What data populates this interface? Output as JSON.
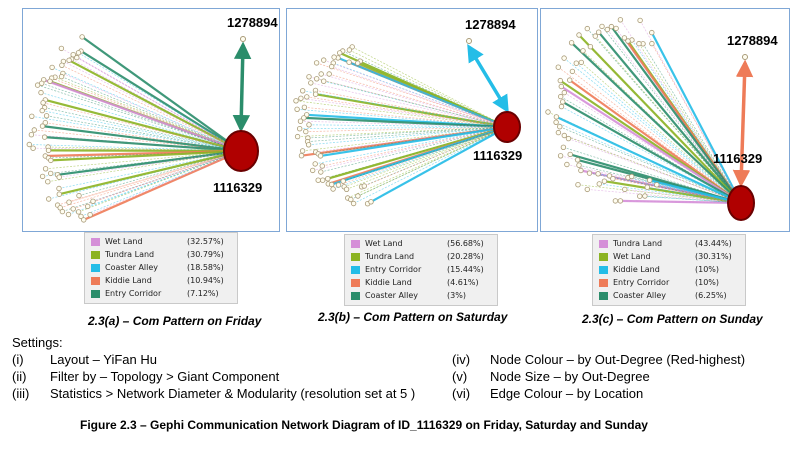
{
  "panels": [
    {
      "id": "friday",
      "top_label": "1278894",
      "hub_label": "1116329",
      "caption": "2.3(a) – Com Pattern on Friday",
      "legend": [
        {
          "name": "Wet Land",
          "pct": "(32.57%)",
          "color": "#d58fd8"
        },
        {
          "name": "Tundra Land",
          "pct": "(30.79%)",
          "color": "#8bb322"
        },
        {
          "name": "Coaster Alley",
          "pct": "(18.58%)",
          "color": "#24bde7"
        },
        {
          "name": "Kiddie Land",
          "pct": "(10.94%)",
          "color": "#ee7b58"
        },
        {
          "name": "Entry Corridor",
          "pct": "(7.12%)",
          "color": "#2b8d6b"
        }
      ],
      "top_edge_color": "#2b8d6b"
    },
    {
      "id": "saturday",
      "top_label": "1278894",
      "hub_label": "1116329",
      "caption": "2.3(b) – Com Pattern on Saturday",
      "legend": [
        {
          "name": "Wet Land",
          "pct": "(56.68%)",
          "color": "#d58fd8"
        },
        {
          "name": "Tundra Land",
          "pct": "(20.28%)",
          "color": "#8bb322"
        },
        {
          "name": "Entry Corridor",
          "pct": "(15.44%)",
          "color": "#24bde7"
        },
        {
          "name": "Kiddie Land",
          "pct": "(4.61%)",
          "color": "#ee7b58"
        },
        {
          "name": "Coaster Alley",
          "pct": "(3%)",
          "color": "#2b8d6b"
        }
      ],
      "top_edge_color": "#24bde7"
    },
    {
      "id": "sunday",
      "top_label": "1278894",
      "hub_label": "1116329",
      "caption": "2.3(c) – Com Pattern on Sunday",
      "legend": [
        {
          "name": "Tundra Land",
          "pct": "(43.44%)",
          "color": "#d58fd8"
        },
        {
          "name": "Wet Land",
          "pct": "(30.31%)",
          "color": "#8bb322"
        },
        {
          "name": "Kiddie Land",
          "pct": "(10%)",
          "color": "#24bde7"
        },
        {
          "name": "Entry Corridor",
          "pct": "(10%)",
          "color": "#ee7b58"
        },
        {
          "name": "Coaster Alley",
          "pct": "(6.25%)",
          "color": "#2b8d6b"
        }
      ],
      "top_edge_color": "#ee7b58"
    }
  ],
  "settings": {
    "title": "Settings:",
    "items": [
      {
        "num": "(i)",
        "text": "Layout – YiFan Hu"
      },
      {
        "num": "(ii)",
        "text": "Filter by – Topology > Giant Component"
      },
      {
        "num": "(iii)",
        "text": "Statistics > Network Diameter & Modularity (resolution set at 5 )"
      },
      {
        "num": "(iv)",
        "text": "Node Colour – by Out-Degree (Red-highest)"
      },
      {
        "num": "(v)",
        "text": "Node Size – by Out-Degree"
      },
      {
        "num": "(vi)",
        "text": "Edge Colour – by Location"
      }
    ]
  },
  "figure_caption": "Figure 2.3 – Gephi Communication Network Diagram of ID_1116329 on Friday, Saturday and Sunday",
  "colors": {
    "hub_fill": "#b00000",
    "hub_stroke": "#6a0000",
    "leaf_stroke": "#a89a78"
  }
}
